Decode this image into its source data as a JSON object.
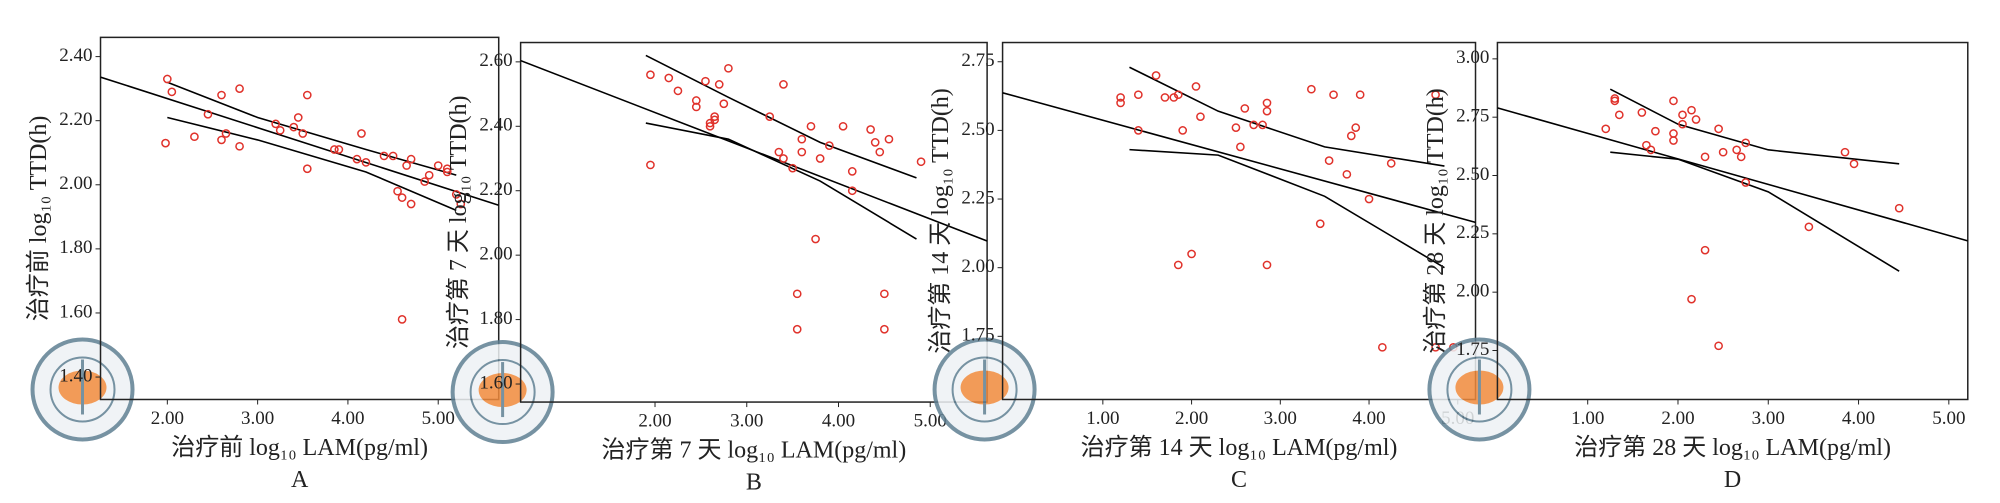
{
  "chart_data": [
    {
      "type": "scatter",
      "panel": "A",
      "xlabel": "治疗前 log₁₀ LAM(pg/ml)",
      "ylabel": "治疗前 log₁₀ TTD(h)",
      "xlim": [
        1.26,
        5.67
      ],
      "ylim": [
        1.33,
        2.46
      ],
      "xticks": [
        {
          "value": 2,
          "label": "2.00"
        },
        {
          "value": 3,
          "label": "3.00"
        },
        {
          "value": 4,
          "label": "4.00"
        },
        {
          "value": 5,
          "label": "5.00"
        }
      ],
      "yticks": [
        {
          "value": 1.4,
          "label": "1.40"
        },
        {
          "value": 1.6,
          "label": "1.60"
        },
        {
          "value": 1.8,
          "label": "1.80"
        },
        {
          "value": 2.0,
          "label": "2.00"
        },
        {
          "value": 2.2,
          "label": "2.20"
        },
        {
          "value": 2.4,
          "label": "2.40"
        }
      ],
      "points": {
        "color": "#e0322b",
        "x": [
          2.0,
          2.05,
          1.98,
          2.3,
          2.45,
          2.6,
          2.6,
          2.65,
          2.8,
          2.8,
          3.2,
          3.25,
          3.4,
          3.45,
          3.5,
          3.55,
          3.55,
          3.85,
          3.9,
          4.1,
          4.15,
          4.2,
          4.4,
          4.5,
          4.55,
          4.6,
          4.65,
          4.7,
          4.7,
          4.6,
          4.85,
          4.9,
          5.0,
          5.1,
          5.1,
          5.2,
          5.25
        ],
        "y": [
          2.33,
          2.29,
          2.13,
          2.15,
          2.22,
          2.28,
          2.14,
          2.16,
          2.3,
          2.12,
          2.19,
          2.17,
          2.18,
          2.21,
          2.16,
          2.28,
          2.05,
          2.11,
          2.11,
          2.08,
          2.16,
          2.07,
          2.09,
          2.09,
          1.98,
          1.96,
          2.06,
          2.08,
          1.94,
          1.58,
          2.01,
          2.03,
          2.06,
          2.04,
          2.05,
          1.97,
          1.94
        ]
      },
      "fits": [
        {
          "color": "#000000",
          "x": [
            1.26,
            5.67
          ],
          "y": [
            2.336,
            1.936
          ]
        },
        {
          "color": "#000000",
          "x": [
            2.0,
            3.0,
            4.2,
            5.2
          ],
          "y": [
            2.32,
            2.21,
            2.11,
            2.03
          ]
        },
        {
          "color": "#000000",
          "x": [
            2.0,
            3.0,
            4.2,
            5.2
          ],
          "y": [
            2.21,
            2.14,
            2.04,
            1.92
          ]
        }
      ]
    },
    {
      "type": "scatter",
      "panel": "B",
      "xlabel": "治疗第 7 天 log₁₀ LAM(pg/ml)",
      "ylabel": "治疗第 7 天 log₁₀ TTD(h)",
      "xlim": [
        0.535,
        5.62
      ],
      "ylim": [
        1.544,
        2.66
      ],
      "xticks": [
        {
          "value": 2,
          "label": "2.00"
        },
        {
          "value": 3,
          "label": "3.00"
        },
        {
          "value": 4,
          "label": "4.00"
        },
        {
          "value": 5,
          "label": "5.00"
        }
      ],
      "yticks": [
        {
          "value": 1.6,
          "label": "1.60"
        },
        {
          "value": 1.8,
          "label": "1.80"
        },
        {
          "value": 2.0,
          "label": "2.00"
        },
        {
          "value": 2.2,
          "label": "2.20"
        },
        {
          "value": 2.4,
          "label": "2.40"
        },
        {
          "value": 2.6,
          "label": "2.60"
        }
      ],
      "points": {
        "color": "#e0322b",
        "x": [
          1.95,
          1.95,
          2.15,
          2.25,
          2.45,
          2.45,
          2.55,
          2.6,
          2.6,
          2.65,
          2.65,
          2.7,
          2.75,
          2.8,
          3.25,
          3.35,
          3.4,
          3.4,
          3.5,
          3.55,
          3.55,
          3.6,
          3.6,
          3.7,
          3.75,
          3.8,
          3.9,
          4.05,
          4.15,
          4.15,
          4.35,
          4.45,
          4.5,
          4.5,
          4.55,
          4.4,
          4.9
        ],
        "y": [
          2.56,
          2.28,
          2.55,
          2.51,
          2.48,
          2.46,
          2.54,
          2.41,
          2.4,
          2.43,
          2.42,
          2.53,
          2.47,
          2.58,
          2.43,
          2.32,
          2.3,
          2.53,
          2.27,
          1.88,
          1.77,
          2.36,
          2.32,
          2.4,
          2.05,
          2.3,
          2.34,
          2.4,
          2.2,
          2.26,
          2.39,
          2.32,
          1.88,
          1.77,
          2.36,
          2.35,
          2.29
        ]
      },
      "fits": [
        {
          "color": "#000000",
          "x": [
            0.535,
            5.62
          ],
          "y": [
            2.604,
            2.044
          ]
        },
        {
          "color": "#000000",
          "x": [
            1.9,
            2.8,
            3.8,
            4.85
          ],
          "y": [
            2.62,
            2.49,
            2.35,
            2.24
          ]
        },
        {
          "color": "#000000",
          "x": [
            1.9,
            2.8,
            3.8,
            4.85
          ],
          "y": [
            2.41,
            2.36,
            2.23,
            2.05
          ]
        }
      ]
    },
    {
      "type": "scatter",
      "panel": "C",
      "xlabel": "治疗第 14 天 log₁₀ LAM(pg/ml)",
      "ylabel": "治疗第 14 天 log₁₀ TTD(h)",
      "xlim": [
        -0.13,
        5.2
      ],
      "ylim": [
        1.52,
        2.82
      ],
      "xticks": [
        {
          "value": 1,
          "label": "1.00"
        },
        {
          "value": 2,
          "label": "2.00"
        },
        {
          "value": 3,
          "label": "3.00"
        },
        {
          "value": 4,
          "label": "4.00"
        },
        {
          "value": 5,
          "label": "5.00"
        }
      ],
      "yticks": [
        1.75,
        {
          "value": 2.0,
          "label": "2.00"
        },
        2.25,
        {
          "value": 2.5,
          "label": "2.50"
        },
        2.75
      ],
      "points": {
        "color": "#e0322b",
        "x": [
          1.2,
          1.2,
          1.4,
          1.4,
          1.6,
          1.7,
          1.8,
          1.85,
          1.85,
          1.9,
          2.0,
          2.05,
          2.1,
          2.5,
          2.55,
          2.6,
          2.7,
          2.8,
          2.85,
          2.85,
          2.85,
          3.35,
          3.45,
          3.55,
          3.6,
          3.75,
          3.8,
          3.85,
          3.9,
          4.0,
          4.15,
          4.25,
          4.75,
          4.75,
          4.95
        ],
        "y": [
          2.62,
          2.6,
          2.63,
          2.5,
          2.7,
          2.62,
          2.62,
          2.63,
          2.01,
          2.5,
          2.05,
          2.66,
          2.55,
          2.51,
          2.44,
          2.58,
          2.52,
          2.52,
          2.6,
          2.57,
          2.01,
          2.65,
          2.16,
          2.39,
          2.63,
          2.34,
          2.48,
          2.51,
          2.63,
          2.25,
          1.71,
          2.38,
          2.63,
          1.71,
          1.71
        ]
      },
      "fits": [
        {
          "color": "#000000",
          "x": [
            -0.13,
            5.2
          ],
          "y": [
            2.637,
            2.165
          ]
        },
        {
          "color": "#000000",
          "x": [
            1.3,
            2.3,
            3.5,
            4.85
          ],
          "y": [
            2.73,
            2.57,
            2.44,
            2.37
          ]
        },
        {
          "color": "#000000",
          "x": [
            1.3,
            2.3,
            3.5,
            4.85
          ],
          "y": [
            2.43,
            2.41,
            2.26,
            2.0
          ]
        }
      ]
    },
    {
      "type": "scatter",
      "panel": "D",
      "xlabel": "治疗第 28 天 log₁₀ LAM(pg/ml)",
      "ylabel": "治疗第 28 天 log₁₀ TTD(h)",
      "xlim": [
        0,
        5.21
      ],
      "ylim": [
        1.54,
        3.07
      ],
      "xticks": [
        {
          "value": 1,
          "label": "1.00"
        },
        {
          "value": 2,
          "label": "2.00"
        },
        {
          "value": 3,
          "label": "3.00"
        },
        {
          "value": 4,
          "label": "4.00"
        },
        {
          "value": 5,
          "label": "5.00"
        }
      ],
      "yticks": [
        1.75,
        {
          "value": 2.0,
          "label": "2.00"
        },
        2.25,
        {
          "value": 2.5,
          "label": "2.50"
        },
        2.75,
        {
          "value": 3.0,
          "label": "3.00"
        }
      ],
      "points": {
        "color": "#e0322b",
        "x": [
          1.2,
          1.3,
          1.3,
          1.35,
          1.6,
          1.65,
          1.7,
          1.75,
          1.95,
          1.95,
          1.95,
          2.05,
          2.05,
          2.15,
          2.15,
          2.2,
          2.3,
          2.3,
          2.45,
          2.45,
          2.5,
          2.65,
          2.7,
          2.75,
          2.75,
          3.45,
          3.85,
          3.95,
          4.45
        ],
        "y": [
          2.7,
          2.83,
          2.82,
          2.76,
          2.77,
          2.63,
          2.61,
          2.69,
          2.82,
          2.68,
          2.65,
          2.72,
          2.76,
          2.78,
          1.97,
          2.74,
          2.58,
          2.18,
          2.7,
          1.77,
          2.6,
          2.61,
          2.58,
          2.64,
          2.47,
          2.28,
          2.6,
          2.55,
          2.36
        ]
      },
      "fits": [
        {
          "color": "#000000",
          "x": [
            0,
            5.21
          ],
          "y": [
            2.79,
            2.22
          ]
        },
        {
          "color": "#000000",
          "x": [
            1.25,
            2.0,
            3.0,
            4.45
          ],
          "y": [
            2.87,
            2.72,
            2.61,
            2.55
          ]
        },
        {
          "color": "#000000",
          "x": [
            1.25,
            2.0,
            3.0,
            4.45
          ],
          "y": [
            2.6,
            2.57,
            2.43,
            2.09
          ]
        }
      ]
    }
  ]
}
